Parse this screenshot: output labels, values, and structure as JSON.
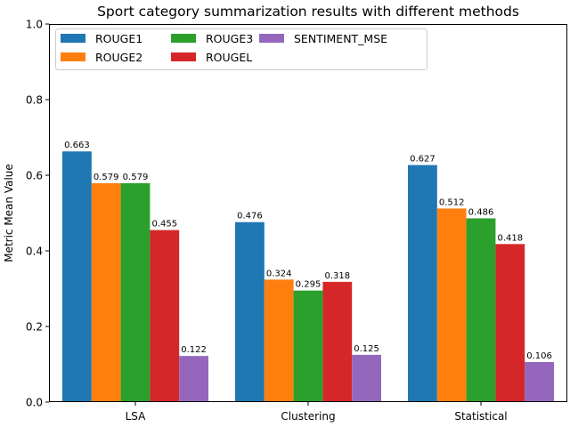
{
  "chart_data": {
    "type": "bar",
    "title": "Sport category summarization results with different methods",
    "xlabel": "",
    "ylabel": "Metric Mean Value",
    "ylim": [
      0,
      1.0
    ],
    "yticks": [
      "0.0",
      "0.2",
      "0.4",
      "0.6",
      "0.8",
      "1.0"
    ],
    "categories": [
      "LSA",
      "Clustering",
      "Statistical"
    ],
    "series": [
      {
        "name": "ROUGE1",
        "color": "#1f77b4",
        "values": [
          0.663,
          0.476,
          0.627
        ],
        "labels": [
          "0.663",
          "0.476",
          "0.627"
        ]
      },
      {
        "name": "ROUGE2",
        "color": "#ff7f0e",
        "values": [
          0.579,
          0.324,
          0.512
        ],
        "labels": [
          "0.579",
          "0.324",
          "0.512"
        ]
      },
      {
        "name": "ROUGE3",
        "color": "#2ca02c",
        "values": [
          0.579,
          0.295,
          0.486
        ],
        "labels": [
          "0.579",
          "0.295",
          "0.486"
        ]
      },
      {
        "name": "ROUGEL",
        "color": "#d62728",
        "values": [
          0.455,
          0.318,
          0.418
        ],
        "labels": [
          "0.455",
          "0.318",
          "0.418"
        ]
      },
      {
        "name": "SENTIMENT_MSE",
        "color": "#9467bd",
        "values": [
          0.122,
          0.125,
          0.106
        ],
        "labels": [
          "0.122",
          "0.125",
          "0.106"
        ]
      }
    ],
    "legend_position": "top-left",
    "grid": false
  }
}
